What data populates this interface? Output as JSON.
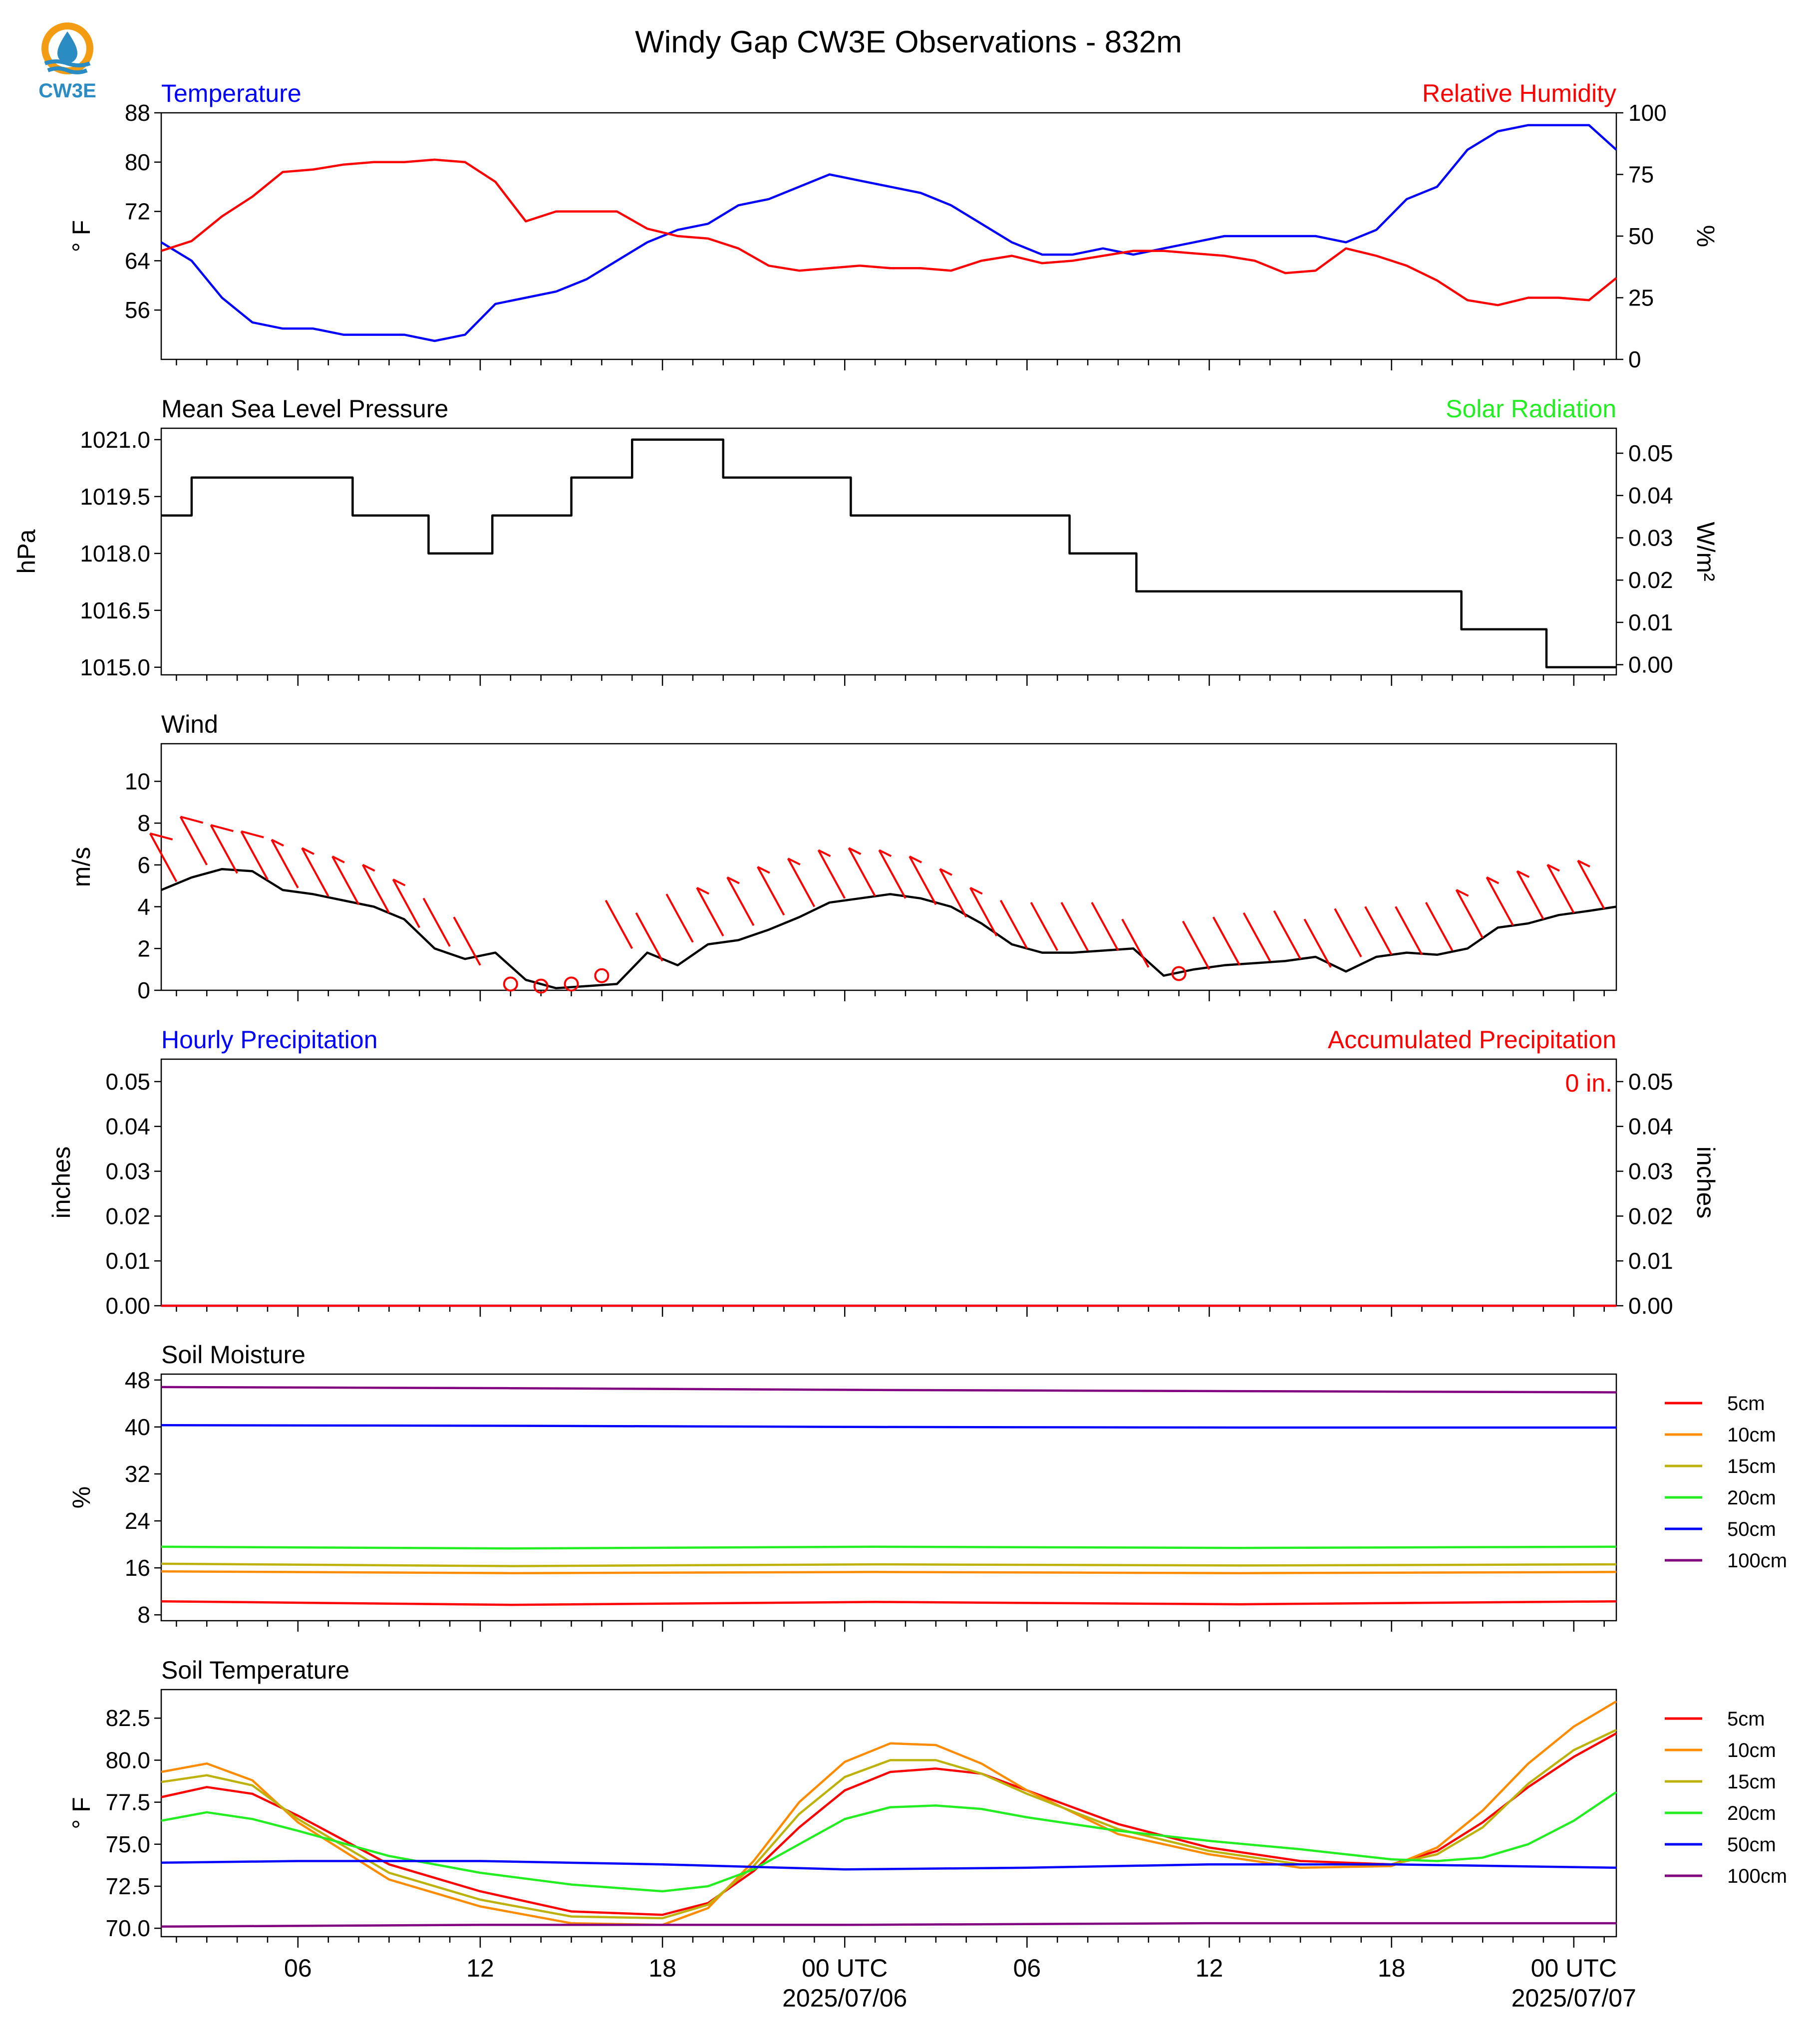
{
  "title": "Windy Gap CW3E Observations - 832m",
  "logo": {
    "text": "CW3E",
    "icon": "cw3e-water-drop-logo",
    "colors": [
      "#f39c12",
      "#2b8cc4"
    ]
  },
  "colors": {
    "blue": "#0000ff",
    "red": "#ff0000",
    "green": "#22ee22",
    "black": "#000000"
  },
  "time_axis": {
    "start_hour": 1.5,
    "end_hour": 49.4,
    "major_ticks": [
      {
        "h": 6,
        "label": "06"
      },
      {
        "h": 12,
        "label": "12"
      },
      {
        "h": 18,
        "label": "18"
      },
      {
        "h": 24,
        "label": "00 UTC",
        "date": "2025/07/06"
      },
      {
        "h": 30,
        "label": "06"
      },
      {
        "h": 36,
        "label": "12"
      },
      {
        "h": 42,
        "label": "18"
      },
      {
        "h": 48,
        "label": "00 UTC",
        "date": "2025/07/07"
      }
    ]
  },
  "chart_data": [
    {
      "id": "temp_rh",
      "type": "line",
      "left_title": "Temperature",
      "left_title_color": "#0000ff",
      "right_title": "Relative Humidity",
      "right_title_color": "#ff0000",
      "ylabel": "° F",
      "ylim": [
        48,
        88
      ],
      "yticks": [
        "56",
        "64",
        "72",
        "80",
        "88"
      ],
      "y2label": "%",
      "y2lim": [
        0,
        100
      ],
      "y2ticks": [
        "0",
        "25",
        "50",
        "75",
        "100"
      ],
      "series": [
        {
          "axis": "left",
          "color": "#0000ff",
          "x": [
            1.5,
            2.5,
            3.5,
            4.5,
            5.5,
            6.5,
            7.5,
            8.5,
            9.5,
            10.5,
            11.5,
            12.5,
            13.5,
            14.5,
            15.5,
            16.5,
            17.5,
            18.5,
            19.5,
            20.5,
            21.5,
            22.5,
            23.5,
            24.5,
            25.5,
            26.5,
            27.5,
            28.5,
            29.5,
            30.5,
            31.5,
            32.5,
            33.5,
            34.5,
            35.5,
            36.5,
            37.5,
            38.5,
            39.5,
            40.5,
            41.5,
            42.5,
            43.5,
            44.5,
            45.5,
            46.5,
            47.5,
            48.5,
            49.4
          ],
          "values": [
            67,
            64,
            58,
            54,
            53,
            53,
            52,
            52,
            52,
            51,
            52,
            57,
            58,
            59,
            61,
            64,
            67,
            69,
            70,
            73,
            74,
            76,
            78,
            77,
            76,
            75,
            73,
            70,
            67,
            65,
            65,
            66,
            65,
            66,
            67,
            68,
            68,
            68,
            68,
            67,
            69,
            74,
            76,
            82,
            85,
            86,
            86,
            86,
            82
          ]
        },
        {
          "axis": "right",
          "color": "#ff0000",
          "x": [
            1.5,
            2.5,
            3.5,
            4.5,
            5.5,
            6.5,
            7.5,
            8.5,
            9.5,
            10.5,
            11.5,
            12.5,
            13.5,
            14.5,
            15.5,
            16.5,
            17.5,
            18.5,
            19.5,
            20.5,
            21.5,
            22.5,
            23.5,
            24.5,
            25.5,
            26.5,
            27.5,
            28.5,
            29.5,
            30.5,
            31.5,
            32.5,
            33.5,
            34.5,
            35.5,
            36.5,
            37.5,
            38.5,
            39.5,
            40.5,
            41.5,
            42.5,
            43.5,
            44.5,
            45.5,
            46.5,
            47.5,
            48.5,
            49.4
          ],
          "values": [
            44,
            48,
            58,
            66,
            76,
            77,
            79,
            80,
            80,
            81,
            80,
            72,
            56,
            60,
            60,
            60,
            53,
            50,
            49,
            45,
            38,
            36,
            37,
            38,
            37,
            37,
            36,
            40,
            42,
            39,
            40,
            42,
            44,
            44,
            43,
            42,
            40,
            35,
            36,
            45,
            42,
            38,
            32,
            24,
            22,
            25,
            25,
            24,
            33
          ]
        }
      ]
    },
    {
      "id": "pressure",
      "type": "line",
      "left_title": "Mean Sea Level Pressure",
      "left_title_color": "#000000",
      "right_title": "Solar Radiation",
      "right_title_color": "#22ee22",
      "ylabel": "hPa",
      "ylim": [
        1014.8,
        1021.3
      ],
      "yticks": [
        "1015.0",
        "1016.5",
        "1018.0",
        "1019.5",
        "1021.0"
      ],
      "y2label": "W/m²",
      "y2lim": [
        -0.0024,
        0.0559
      ],
      "y2ticks": [
        "0.00",
        "0.01",
        "0.02",
        "0.03",
        "0.04",
        "0.05"
      ],
      "series": [
        {
          "axis": "left",
          "color": "#000000",
          "x": [
            1.5,
            2.5,
            2.5,
            3.5,
            3.5,
            7.8,
            7.8,
            10.3,
            10.3,
            12.4,
            12.4,
            15.0,
            15.0,
            17.0,
            17.0,
            20.0,
            20.0,
            24.2,
            24.2,
            31.4,
            31.4,
            33.6,
            33.6,
            40.5,
            40.5,
            44.3,
            44.3,
            47.1,
            47.1,
            49.4
          ],
          "values": [
            1019.0,
            1019.0,
            1020.0,
            1020.0,
            1020.0,
            1020.0,
            1019.0,
            1019.0,
            1018.0,
            1018.0,
            1019.0,
            1019.0,
            1020.0,
            1020.0,
            1021.0,
            1021.0,
            1020.0,
            1020.0,
            1019.0,
            1019.0,
            1018.0,
            1018.0,
            1017.0,
            1017.0,
            1017.0,
            1017.0,
            1016.0,
            1016.0,
            1015.0,
            1015.0
          ]
        }
      ]
    },
    {
      "id": "wind",
      "type": "line",
      "left_title": "Wind",
      "left_title_color": "#000000",
      "ylabel": "m/s",
      "ylim": [
        0,
        11.8
      ],
      "yticks": [
        "0",
        "2",
        "4",
        "6",
        "8",
        "10"
      ],
      "series": [
        {
          "axis": "left",
          "color": "#000000",
          "x": [
            1.5,
            2.5,
            3.5,
            4.5,
            5.5,
            6.5,
            7.5,
            8.5,
            9.5,
            10.5,
            11.5,
            12.5,
            13.5,
            14.5,
            15.5,
            16.5,
            17.5,
            18.5,
            19.5,
            20.5,
            21.5,
            22.5,
            23.5,
            24.5,
            25.5,
            26.5,
            27.5,
            28.5,
            29.5,
            30.5,
            31.5,
            32.5,
            33.5,
            34.5,
            35.5,
            36.5,
            37.5,
            38.5,
            39.5,
            40.5,
            41.5,
            42.5,
            43.5,
            44.5,
            45.5,
            46.5,
            47.5,
            48.5,
            49.4
          ],
          "values": [
            4.8,
            5.4,
            5.8,
            5.7,
            4.8,
            4.6,
            4.3,
            4.0,
            3.4,
            2.0,
            1.5,
            1.8,
            0.5,
            0.1,
            0.2,
            0.3,
            1.8,
            1.2,
            2.2,
            2.4,
            2.9,
            3.5,
            4.2,
            4.4,
            4.6,
            4.4,
            4.0,
            3.2,
            2.2,
            1.8,
            1.8,
            1.9,
            2.0,
            0.7,
            1.0,
            1.2,
            1.3,
            1.4,
            1.6,
            0.9,
            1.6,
            1.8,
            1.7,
            2.0,
            3.0,
            3.2,
            3.6,
            3.8,
            4.0
          ]
        }
      ],
      "barbs": {
        "color": "#ff0000",
        "x": [
          2,
          3,
          4,
          5,
          6,
          7,
          8,
          9,
          10,
          11,
          12,
          13,
          14,
          15,
          16,
          17,
          18,
          19,
          20,
          21,
          22,
          23,
          24,
          25,
          26,
          27,
          28,
          29,
          30,
          31,
          32,
          33,
          34,
          35,
          36,
          37,
          38,
          39,
          40,
          41,
          42,
          43,
          44,
          45,
          46,
          47,
          48,
          49
        ],
        "speed": [
          5.2,
          6.0,
          5.6,
          5.3,
          4.9,
          4.5,
          4.1,
          3.7,
          3.0,
          2.1,
          1.2,
          0.3,
          0.2,
          0.3,
          0.7,
          2.0,
          1.4,
          2.3,
          2.6,
          3.1,
          3.6,
          4.0,
          4.4,
          4.5,
          4.4,
          4.1,
          3.5,
          2.6,
          2.0,
          1.9,
          1.9,
          1.9,
          1.1,
          0.8,
          1.0,
          1.2,
          1.4,
          1.5,
          1.1,
          1.6,
          1.7,
          1.7,
          1.9,
          2.5,
          3.1,
          3.4,
          3.7,
          3.9
        ]
      }
    },
    {
      "id": "precip",
      "type": "line",
      "left_title": "Hourly Precipitation",
      "left_title_color": "#0000ff",
      "right_title": "Accumulated Precipitation",
      "right_title_color": "#ff0000",
      "annotation": "0 in.",
      "ylabel": "inches",
      "ylim": [
        0,
        0.055
      ],
      "yticks": [
        "0.00",
        "0.01",
        "0.02",
        "0.03",
        "0.04",
        "0.05"
      ],
      "y2label": "inches",
      "y2lim": [
        0,
        0.055
      ],
      "y2ticks": [
        "0.00",
        "0.01",
        "0.02",
        "0.03",
        "0.04",
        "0.05"
      ],
      "series": [
        {
          "axis": "left",
          "color": "#0000ff",
          "x": [
            1.5,
            49.4
          ],
          "values": [
            0,
            0
          ]
        },
        {
          "axis": "right",
          "color": "#ff0000",
          "x": [
            1.5,
            49.4
          ],
          "values": [
            0,
            0
          ]
        }
      ]
    },
    {
      "id": "soil_moisture",
      "type": "line",
      "left_title": "Soil Moisture",
      "left_title_color": "#000000",
      "ylabel": "%",
      "ylim": [
        7,
        49
      ],
      "yticks": [
        "8",
        "16",
        "24",
        "32",
        "40",
        "48"
      ],
      "series": [
        {
          "axis": "left",
          "name": "5cm",
          "color": "#ff0000",
          "x": [
            1.5,
            13,
            25,
            37,
            49.4
          ],
          "values": [
            10.3,
            9.7,
            10.2,
            9.8,
            10.3
          ]
        },
        {
          "axis": "left",
          "name": "10cm",
          "color": "#ff8c00",
          "x": [
            1.5,
            13,
            25,
            37,
            49.4
          ],
          "values": [
            15.4,
            15.1,
            15.3,
            15.1,
            15.3
          ]
        },
        {
          "axis": "left",
          "name": "15cm",
          "color": "#bdb20b",
          "x": [
            1.5,
            13,
            25,
            37,
            49.4
          ],
          "values": [
            16.7,
            16.3,
            16.6,
            16.4,
            16.6
          ]
        },
        {
          "axis": "left",
          "name": "20cm",
          "color": "#22ee22",
          "x": [
            1.5,
            13,
            25,
            37,
            49.4
          ],
          "values": [
            19.6,
            19.3,
            19.6,
            19.4,
            19.6
          ]
        },
        {
          "axis": "left",
          "name": "50cm",
          "color": "#0000ff",
          "x": [
            1.5,
            13,
            25,
            37,
            49.4
          ],
          "values": [
            40.3,
            40.2,
            40.0,
            39.9,
            39.9
          ]
        },
        {
          "axis": "left",
          "name": "100cm",
          "color": "#800080",
          "x": [
            1.5,
            13,
            25,
            37,
            49.4
          ],
          "values": [
            46.8,
            46.6,
            46.3,
            46.1,
            45.9
          ]
        }
      ]
    },
    {
      "id": "soil_temp",
      "type": "line",
      "left_title": "Soil Temperature",
      "left_title_color": "#000000",
      "ylabel": "° F",
      "ylim": [
        69.5,
        84.2
      ],
      "yticks": [
        "70.0",
        "72.5",
        "75.0",
        "77.5",
        "80.0",
        "82.5"
      ],
      "series": [
        {
          "axis": "left",
          "name": "5cm",
          "color": "#ff0000",
          "x": [
            1.5,
            3,
            4.5,
            6,
            9,
            12,
            15,
            18,
            19.5,
            21,
            22.5,
            24,
            25.5,
            27,
            28.5,
            30,
            33,
            36,
            39,
            42,
            43.5,
            45,
            46.5,
            48,
            49.4
          ],
          "values": [
            77.8,
            78.4,
            78.0,
            76.7,
            73.8,
            72.2,
            71.0,
            70.8,
            71.5,
            73.4,
            76.0,
            78.2,
            79.3,
            79.5,
            79.2,
            78.2,
            76.2,
            74.8,
            74.0,
            73.8,
            74.6,
            76.3,
            78.4,
            80.2,
            81.6
          ]
        },
        {
          "axis": "left",
          "name": "10cm",
          "color": "#ff8c00",
          "x": [
            1.5,
            3,
            4.5,
            6,
            9,
            12,
            15,
            18,
            19.5,
            21,
            22.5,
            24,
            25.5,
            27,
            28.5,
            30,
            33,
            36,
            39,
            42,
            43.5,
            45,
            46.5,
            48,
            49.4
          ],
          "values": [
            79.3,
            79.8,
            78.8,
            76.3,
            72.9,
            71.3,
            70.3,
            70.2,
            71.2,
            74.0,
            77.5,
            79.9,
            81.0,
            80.9,
            79.8,
            78.2,
            75.6,
            74.4,
            73.6,
            73.7,
            74.8,
            77.0,
            79.8,
            82.0,
            83.5
          ]
        },
        {
          "axis": "left",
          "name": "15cm",
          "color": "#bdb20b",
          "x": [
            1.5,
            3,
            4.5,
            6,
            9,
            12,
            15,
            18,
            19.5,
            21,
            22.5,
            24,
            25.5,
            27,
            28.5,
            30,
            33,
            36,
            39,
            42,
            43.5,
            45,
            46.5,
            48,
            49.4
          ],
          "values": [
            78.7,
            79.1,
            78.5,
            76.5,
            73.3,
            71.7,
            70.7,
            70.6,
            71.4,
            73.7,
            76.8,
            79.0,
            80.0,
            80.0,
            79.2,
            78.0,
            75.9,
            74.6,
            73.8,
            73.8,
            74.4,
            76.0,
            78.6,
            80.6,
            81.8
          ]
        },
        {
          "axis": "left",
          "name": "20cm",
          "color": "#22ee22",
          "x": [
            1.5,
            3,
            4.5,
            6,
            9,
            12,
            15,
            18,
            19.5,
            21,
            22.5,
            24,
            25.5,
            27,
            28.5,
            30,
            33,
            36,
            39,
            42,
            43.5,
            45,
            46.5,
            48,
            49.4
          ],
          "values": [
            76.4,
            76.9,
            76.5,
            75.8,
            74.3,
            73.3,
            72.6,
            72.2,
            72.5,
            73.5,
            75.0,
            76.5,
            77.2,
            77.3,
            77.1,
            76.6,
            75.8,
            75.2,
            74.7,
            74.1,
            74.0,
            74.2,
            75.0,
            76.4,
            78.1
          ]
        },
        {
          "axis": "left",
          "name": "50cm",
          "color": "#0000ff",
          "x": [
            1.5,
            6,
            12,
            18,
            24,
            30,
            36,
            42,
            49.4
          ],
          "values": [
            73.9,
            74.0,
            74.0,
            73.8,
            73.5,
            73.6,
            73.8,
            73.8,
            73.6
          ]
        },
        {
          "axis": "left",
          "name": "100cm",
          "color": "#800080",
          "x": [
            1.5,
            12,
            24,
            36,
            49.4
          ],
          "values": [
            70.1,
            70.2,
            70.2,
            70.3,
            70.3
          ]
        }
      ],
      "legend": true
    }
  ]
}
